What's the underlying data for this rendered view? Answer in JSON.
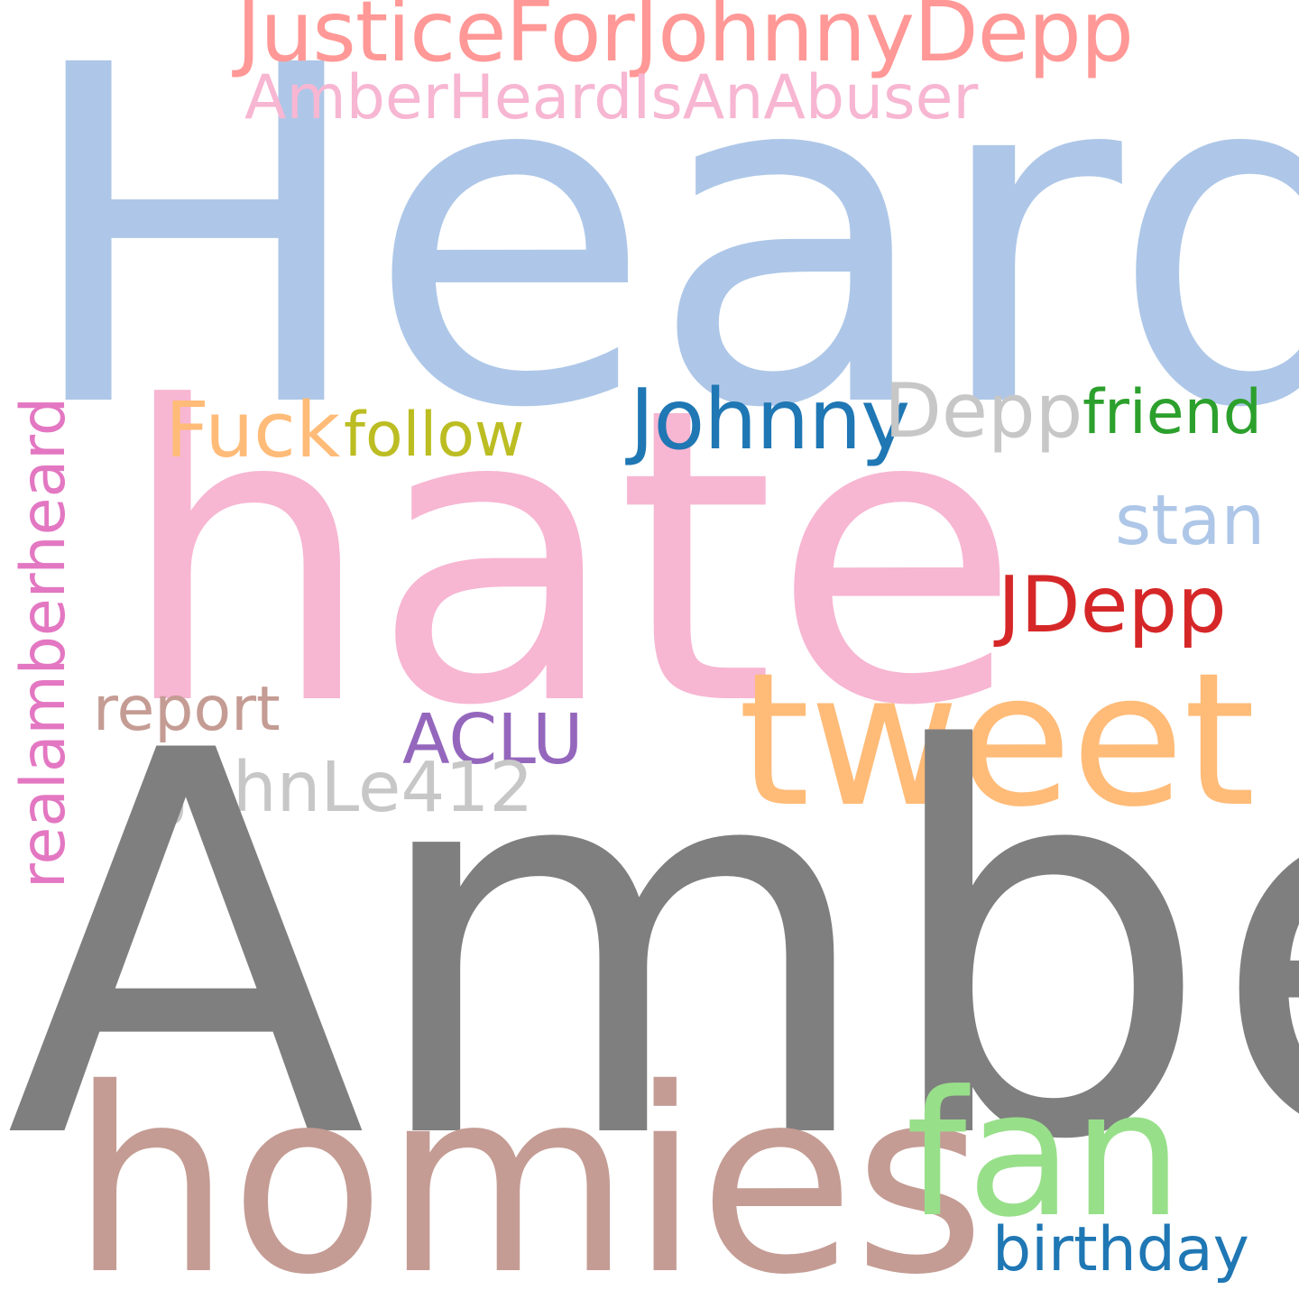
{
  "words": {
    "heard": {
      "text": "Heard",
      "color": "#aec7e8"
    },
    "amber": {
      "text": "Amber",
      "color": "#7f7f7f"
    },
    "hate": {
      "text": "hate",
      "color": "#f7b6d2"
    },
    "homies": {
      "text": "homies",
      "color": "#c49c94"
    },
    "tweet": {
      "text": "tweet",
      "color": "#ffbb78"
    },
    "fan": {
      "text": "fan",
      "color": "#98df8a"
    },
    "justice": {
      "text": "JusticeForJohnnyDepp",
      "color": "#ff9896"
    },
    "abuser": {
      "text": "AmberHeardIsAnAbuser",
      "color": "#f7b6d2"
    },
    "fuck": {
      "text": "Fuck",
      "color": "#ffbb78"
    },
    "follow": {
      "text": "follow",
      "color": "#bcbd22"
    },
    "johnny": {
      "text": "Johnny",
      "color": "#1f77b4"
    },
    "depp": {
      "text": "Depp",
      "color": "#c7c7c7"
    },
    "friend": {
      "text": "friend",
      "color": "#2ca02c"
    },
    "stan": {
      "text": "stan",
      "color": "#aec7e8"
    },
    "jdepp": {
      "text": "JDepp",
      "color": "#d62728"
    },
    "report": {
      "text": "report",
      "color": "#c49c94"
    },
    "aclu": {
      "text": "ACLU",
      "color": "#9467bd"
    },
    "johnle": {
      "text": "JohnLe412",
      "color": "#c7c7c7"
    },
    "birthday": {
      "text": "birthday",
      "color": "#1f77b4"
    },
    "real": {
      "text": "realamberheard",
      "color": "#e377c2"
    }
  }
}
